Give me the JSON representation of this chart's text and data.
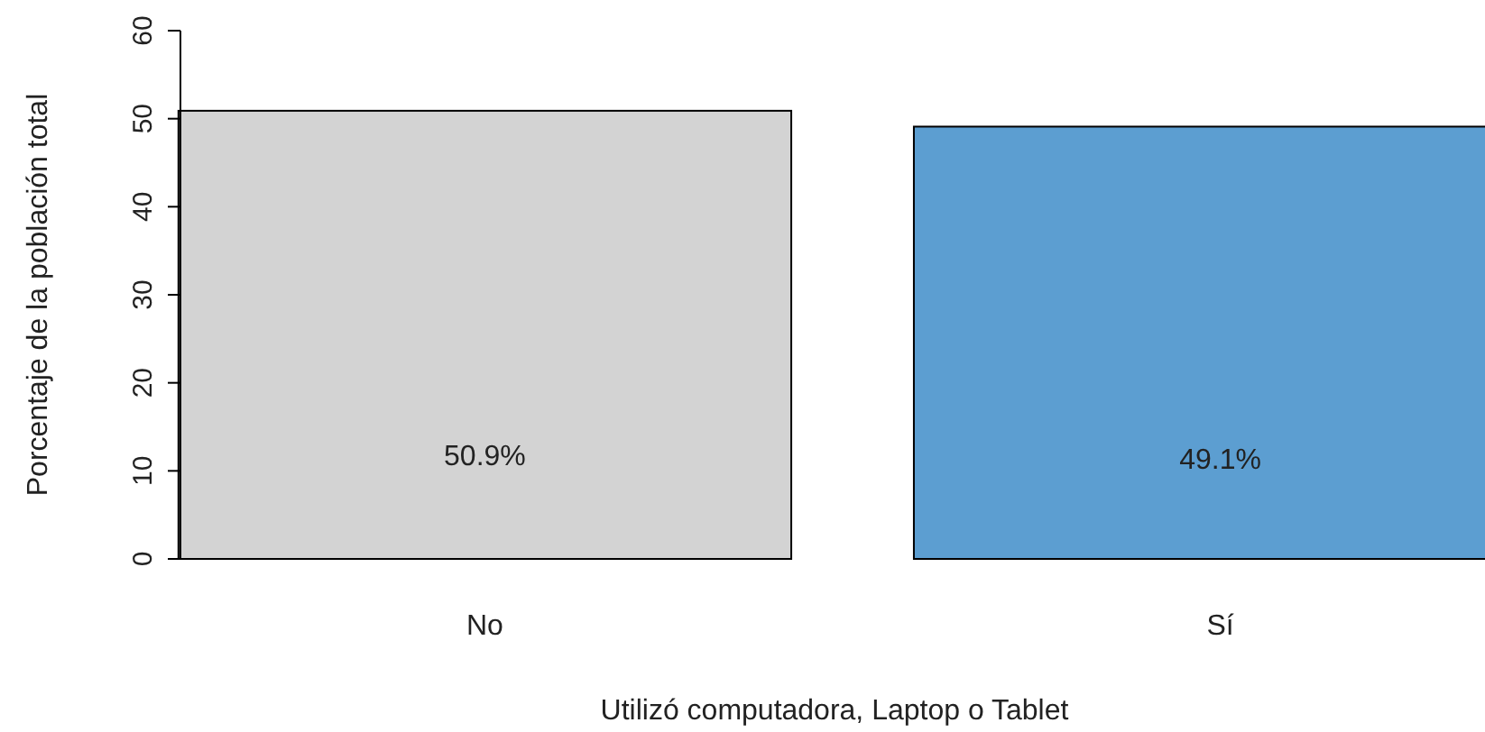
{
  "chart_data": {
    "type": "bar",
    "xlabel": "Utilizó computadora, Laptop o Tablet",
    "ylabel": "Porcentaje de la población total",
    "categories": [
      "No",
      "Sí"
    ],
    "values": [
      50.9,
      49.1
    ],
    "colors": [
      "#d3d3d3",
      "#5c9ed1"
    ],
    "value_labels": [
      "50.9%",
      "49.1%"
    ],
    "ylim": [
      0,
      60
    ],
    "yticks": [
      0,
      10,
      20,
      30,
      40,
      50,
      60
    ],
    "grid": false
  }
}
